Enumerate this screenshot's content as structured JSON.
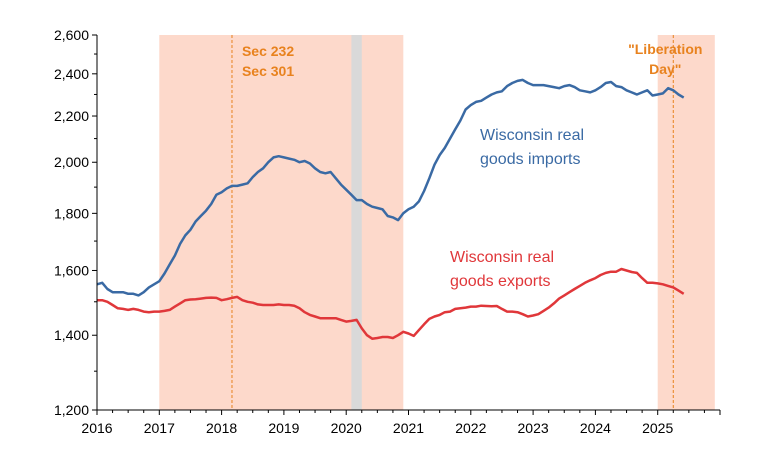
{
  "chart_data": {
    "type": "line",
    "y_scale": "log",
    "ylim": [
      1200,
      2600
    ],
    "xlim": [
      "2016-01",
      "2025-12"
    ],
    "y_ticks": [
      "1,200",
      "1,400",
      "1,600",
      "1,800",
      "2,000",
      "2,200",
      "2,400",
      "2,600"
    ],
    "x_ticks": [
      "2016",
      "2017",
      "2018",
      "2019",
      "2020",
      "2021",
      "2022",
      "2023",
      "2024",
      "2025"
    ],
    "grid": false,
    "colors": {
      "imports": "#3a6aa4",
      "exports": "#e0373a",
      "shade_policy": "#fdd9cb",
      "shade_recession": "#d9d9d9",
      "vline": "#e8821e"
    },
    "shaded_regions": [
      {
        "start": "2017-01",
        "end": "2020-12",
        "kind": "policy"
      },
      {
        "start": "2020-02",
        "end": "2020-04",
        "kind": "recession"
      },
      {
        "start": "2025-01",
        "end": "2025-12",
        "kind": "policy"
      }
    ],
    "annotations": [
      {
        "date": "2018-03",
        "lines": [
          "Sec 232",
          "Sec 301"
        ]
      },
      {
        "date": "2025-04",
        "lines": [
          "\"Liberation",
          "Day\""
        ]
      }
    ],
    "series": [
      {
        "name_lines": [
          "Wisconsin real",
          "goods imports"
        ],
        "key": "imports",
        "points": [
          [
            "2016-01",
            1555
          ],
          [
            "2016-02",
            1560
          ],
          [
            "2016-03",
            1540
          ],
          [
            "2016-04",
            1530
          ],
          [
            "2016-05",
            1530
          ],
          [
            "2016-06",
            1530
          ],
          [
            "2016-07",
            1525
          ],
          [
            "2016-08",
            1525
          ],
          [
            "2016-09",
            1520
          ],
          [
            "2016-10",
            1530
          ],
          [
            "2016-11",
            1545
          ],
          [
            "2016-12",
            1555
          ],
          [
            "2017-01",
            1565
          ],
          [
            "2017-02",
            1590
          ],
          [
            "2017-03",
            1620
          ],
          [
            "2017-04",
            1650
          ],
          [
            "2017-05",
            1690
          ],
          [
            "2017-06",
            1720
          ],
          [
            "2017-07",
            1740
          ],
          [
            "2017-08",
            1770
          ],
          [
            "2017-09",
            1790
          ],
          [
            "2017-10",
            1810
          ],
          [
            "2017-11",
            1835
          ],
          [
            "2017-12",
            1870
          ],
          [
            "2018-01",
            1880
          ],
          [
            "2018-02",
            1895
          ],
          [
            "2018-03",
            1905
          ],
          [
            "2018-04",
            1905
          ],
          [
            "2018-05",
            1910
          ],
          [
            "2018-06",
            1915
          ],
          [
            "2018-07",
            1940
          ],
          [
            "2018-08",
            1960
          ],
          [
            "2018-09",
            1975
          ],
          [
            "2018-10",
            2000
          ],
          [
            "2018-11",
            2020
          ],
          [
            "2018-12",
            2025
          ],
          [
            "2019-01",
            2020
          ],
          [
            "2019-02",
            2015
          ],
          [
            "2019-03",
            2010
          ],
          [
            "2019-04",
            2000
          ],
          [
            "2019-05",
            2005
          ],
          [
            "2019-06",
            1995
          ],
          [
            "2019-07",
            1975
          ],
          [
            "2019-08",
            1960
          ],
          [
            "2019-09",
            1955
          ],
          [
            "2019-10",
            1960
          ],
          [
            "2019-11",
            1935
          ],
          [
            "2019-12",
            1910
          ],
          [
            "2020-01",
            1890
          ],
          [
            "2020-02",
            1870
          ],
          [
            "2020-03",
            1850
          ],
          [
            "2020-04",
            1850
          ],
          [
            "2020-05",
            1835
          ],
          [
            "2020-06",
            1825
          ],
          [
            "2020-07",
            1820
          ],
          [
            "2020-08",
            1815
          ],
          [
            "2020-09",
            1790
          ],
          [
            "2020-10",
            1785
          ],
          [
            "2020-11",
            1775
          ],
          [
            "2020-12",
            1800
          ],
          [
            "2021-01",
            1815
          ],
          [
            "2021-02",
            1825
          ],
          [
            "2021-03",
            1845
          ],
          [
            "2021-04",
            1885
          ],
          [
            "2021-05",
            1935
          ],
          [
            "2021-06",
            1990
          ],
          [
            "2021-07",
            2030
          ],
          [
            "2021-08",
            2060
          ],
          [
            "2021-09",
            2100
          ],
          [
            "2021-10",
            2140
          ],
          [
            "2021-11",
            2180
          ],
          [
            "2021-12",
            2230
          ],
          [
            "2022-01",
            2250
          ],
          [
            "2022-02",
            2265
          ],
          [
            "2022-03",
            2270
          ],
          [
            "2022-04",
            2285
          ],
          [
            "2022-05",
            2300
          ],
          [
            "2022-06",
            2310
          ],
          [
            "2022-07",
            2315
          ],
          [
            "2022-08",
            2340
          ],
          [
            "2022-09",
            2355
          ],
          [
            "2022-10",
            2365
          ],
          [
            "2022-11",
            2370
          ],
          [
            "2022-12",
            2355
          ],
          [
            "2023-01",
            2345
          ],
          [
            "2023-02",
            2345
          ],
          [
            "2023-03",
            2345
          ],
          [
            "2023-04",
            2340
          ],
          [
            "2023-05",
            2335
          ],
          [
            "2023-06",
            2330
          ],
          [
            "2023-07",
            2340
          ],
          [
            "2023-08",
            2345
          ],
          [
            "2023-09",
            2335
          ],
          [
            "2023-10",
            2320
          ],
          [
            "2023-11",
            2315
          ],
          [
            "2023-12",
            2310
          ],
          [
            "2024-01",
            2320
          ],
          [
            "2024-02",
            2335
          ],
          [
            "2024-03",
            2355
          ],
          [
            "2024-04",
            2360
          ],
          [
            "2024-05",
            2340
          ],
          [
            "2024-06",
            2335
          ],
          [
            "2024-07",
            2320
          ],
          [
            "2024-08",
            2310
          ],
          [
            "2024-09",
            2300
          ],
          [
            "2024-10",
            2310
          ],
          [
            "2024-11",
            2320
          ],
          [
            "2024-12",
            2295
          ],
          [
            "2025-01",
            2300
          ],
          [
            "2025-02",
            2305
          ],
          [
            "2025-03",
            2330
          ],
          [
            "2025-04",
            2320
          ],
          [
            "2025-05",
            2300
          ],
          [
            "2025-06",
            2285
          ]
        ]
      },
      {
        "name_lines": [
          "Wisconsin real",
          "goods exports"
        ],
        "key": "exports",
        "points": [
          [
            "2016-01",
            1505
          ],
          [
            "2016-02",
            1505
          ],
          [
            "2016-03",
            1500
          ],
          [
            "2016-04",
            1490
          ],
          [
            "2016-05",
            1480
          ],
          [
            "2016-06",
            1478
          ],
          [
            "2016-07",
            1475
          ],
          [
            "2016-08",
            1478
          ],
          [
            "2016-09",
            1475
          ],
          [
            "2016-10",
            1470
          ],
          [
            "2016-11",
            1468
          ],
          [
            "2016-12",
            1470
          ],
          [
            "2017-01",
            1470
          ],
          [
            "2017-02",
            1472
          ],
          [
            "2017-03",
            1475
          ],
          [
            "2017-04",
            1485
          ],
          [
            "2017-05",
            1495
          ],
          [
            "2017-06",
            1505
          ],
          [
            "2017-07",
            1507
          ],
          [
            "2017-08",
            1508
          ],
          [
            "2017-09",
            1510
          ],
          [
            "2017-10",
            1512
          ],
          [
            "2017-11",
            1513
          ],
          [
            "2017-12",
            1512
          ],
          [
            "2018-01",
            1505
          ],
          [
            "2018-02",
            1508
          ],
          [
            "2018-03",
            1512
          ],
          [
            "2018-04",
            1515
          ],
          [
            "2018-05",
            1505
          ],
          [
            "2018-06",
            1500
          ],
          [
            "2018-07",
            1497
          ],
          [
            "2018-08",
            1492
          ],
          [
            "2018-09",
            1490
          ],
          [
            "2018-10",
            1490
          ],
          [
            "2018-11",
            1490
          ],
          [
            "2018-12",
            1492
          ],
          [
            "2019-01",
            1490
          ],
          [
            "2019-02",
            1490
          ],
          [
            "2019-03",
            1488
          ],
          [
            "2019-04",
            1480
          ],
          [
            "2019-05",
            1468
          ],
          [
            "2019-06",
            1460
          ],
          [
            "2019-07",
            1455
          ],
          [
            "2019-08",
            1450
          ],
          [
            "2019-09",
            1450
          ],
          [
            "2019-10",
            1450
          ],
          [
            "2019-11",
            1450
          ],
          [
            "2019-12",
            1445
          ],
          [
            "2020-01",
            1440
          ],
          [
            "2020-02",
            1442
          ],
          [
            "2020-03",
            1445
          ],
          [
            "2020-04",
            1420
          ],
          [
            "2020-05",
            1400
          ],
          [
            "2020-06",
            1390
          ],
          [
            "2020-07",
            1392
          ],
          [
            "2020-08",
            1395
          ],
          [
            "2020-09",
            1395
          ],
          [
            "2020-10",
            1392
          ],
          [
            "2020-11",
            1400
          ],
          [
            "2020-12",
            1410
          ],
          [
            "2021-01",
            1405
          ],
          [
            "2021-02",
            1398
          ],
          [
            "2021-03",
            1415
          ],
          [
            "2021-04",
            1432
          ],
          [
            "2021-05",
            1448
          ],
          [
            "2021-06",
            1455
          ],
          [
            "2021-07",
            1460
          ],
          [
            "2021-08",
            1468
          ],
          [
            "2021-09",
            1470
          ],
          [
            "2021-10",
            1478
          ],
          [
            "2021-11",
            1480
          ],
          [
            "2021-12",
            1482
          ],
          [
            "2022-01",
            1485
          ],
          [
            "2022-02",
            1485
          ],
          [
            "2022-03",
            1488
          ],
          [
            "2022-04",
            1487
          ],
          [
            "2022-05",
            1486
          ],
          [
            "2022-06",
            1487
          ],
          [
            "2022-07",
            1478
          ],
          [
            "2022-08",
            1470
          ],
          [
            "2022-09",
            1470
          ],
          [
            "2022-10",
            1468
          ],
          [
            "2022-11",
            1462
          ],
          [
            "2022-12",
            1455
          ],
          [
            "2023-01",
            1458
          ],
          [
            "2023-02",
            1462
          ],
          [
            "2023-03",
            1472
          ],
          [
            "2023-04",
            1482
          ],
          [
            "2023-05",
            1495
          ],
          [
            "2023-06",
            1510
          ],
          [
            "2023-07",
            1520
          ],
          [
            "2023-08",
            1530
          ],
          [
            "2023-09",
            1540
          ],
          [
            "2023-10",
            1550
          ],
          [
            "2023-11",
            1560
          ],
          [
            "2023-12",
            1568
          ],
          [
            "2024-01",
            1575
          ],
          [
            "2024-02",
            1585
          ],
          [
            "2024-03",
            1592
          ],
          [
            "2024-04",
            1596
          ],
          [
            "2024-05",
            1596
          ],
          [
            "2024-06",
            1605
          ],
          [
            "2024-07",
            1600
          ],
          [
            "2024-08",
            1595
          ],
          [
            "2024-09",
            1592
          ],
          [
            "2024-10",
            1575
          ],
          [
            "2024-11",
            1560
          ],
          [
            "2024-12",
            1560
          ],
          [
            "2025-01",
            1558
          ],
          [
            "2025-02",
            1555
          ],
          [
            "2025-03",
            1550
          ],
          [
            "2025-04",
            1545
          ],
          [
            "2025-05",
            1535
          ],
          [
            "2025-06",
            1525
          ]
        ]
      }
    ]
  }
}
